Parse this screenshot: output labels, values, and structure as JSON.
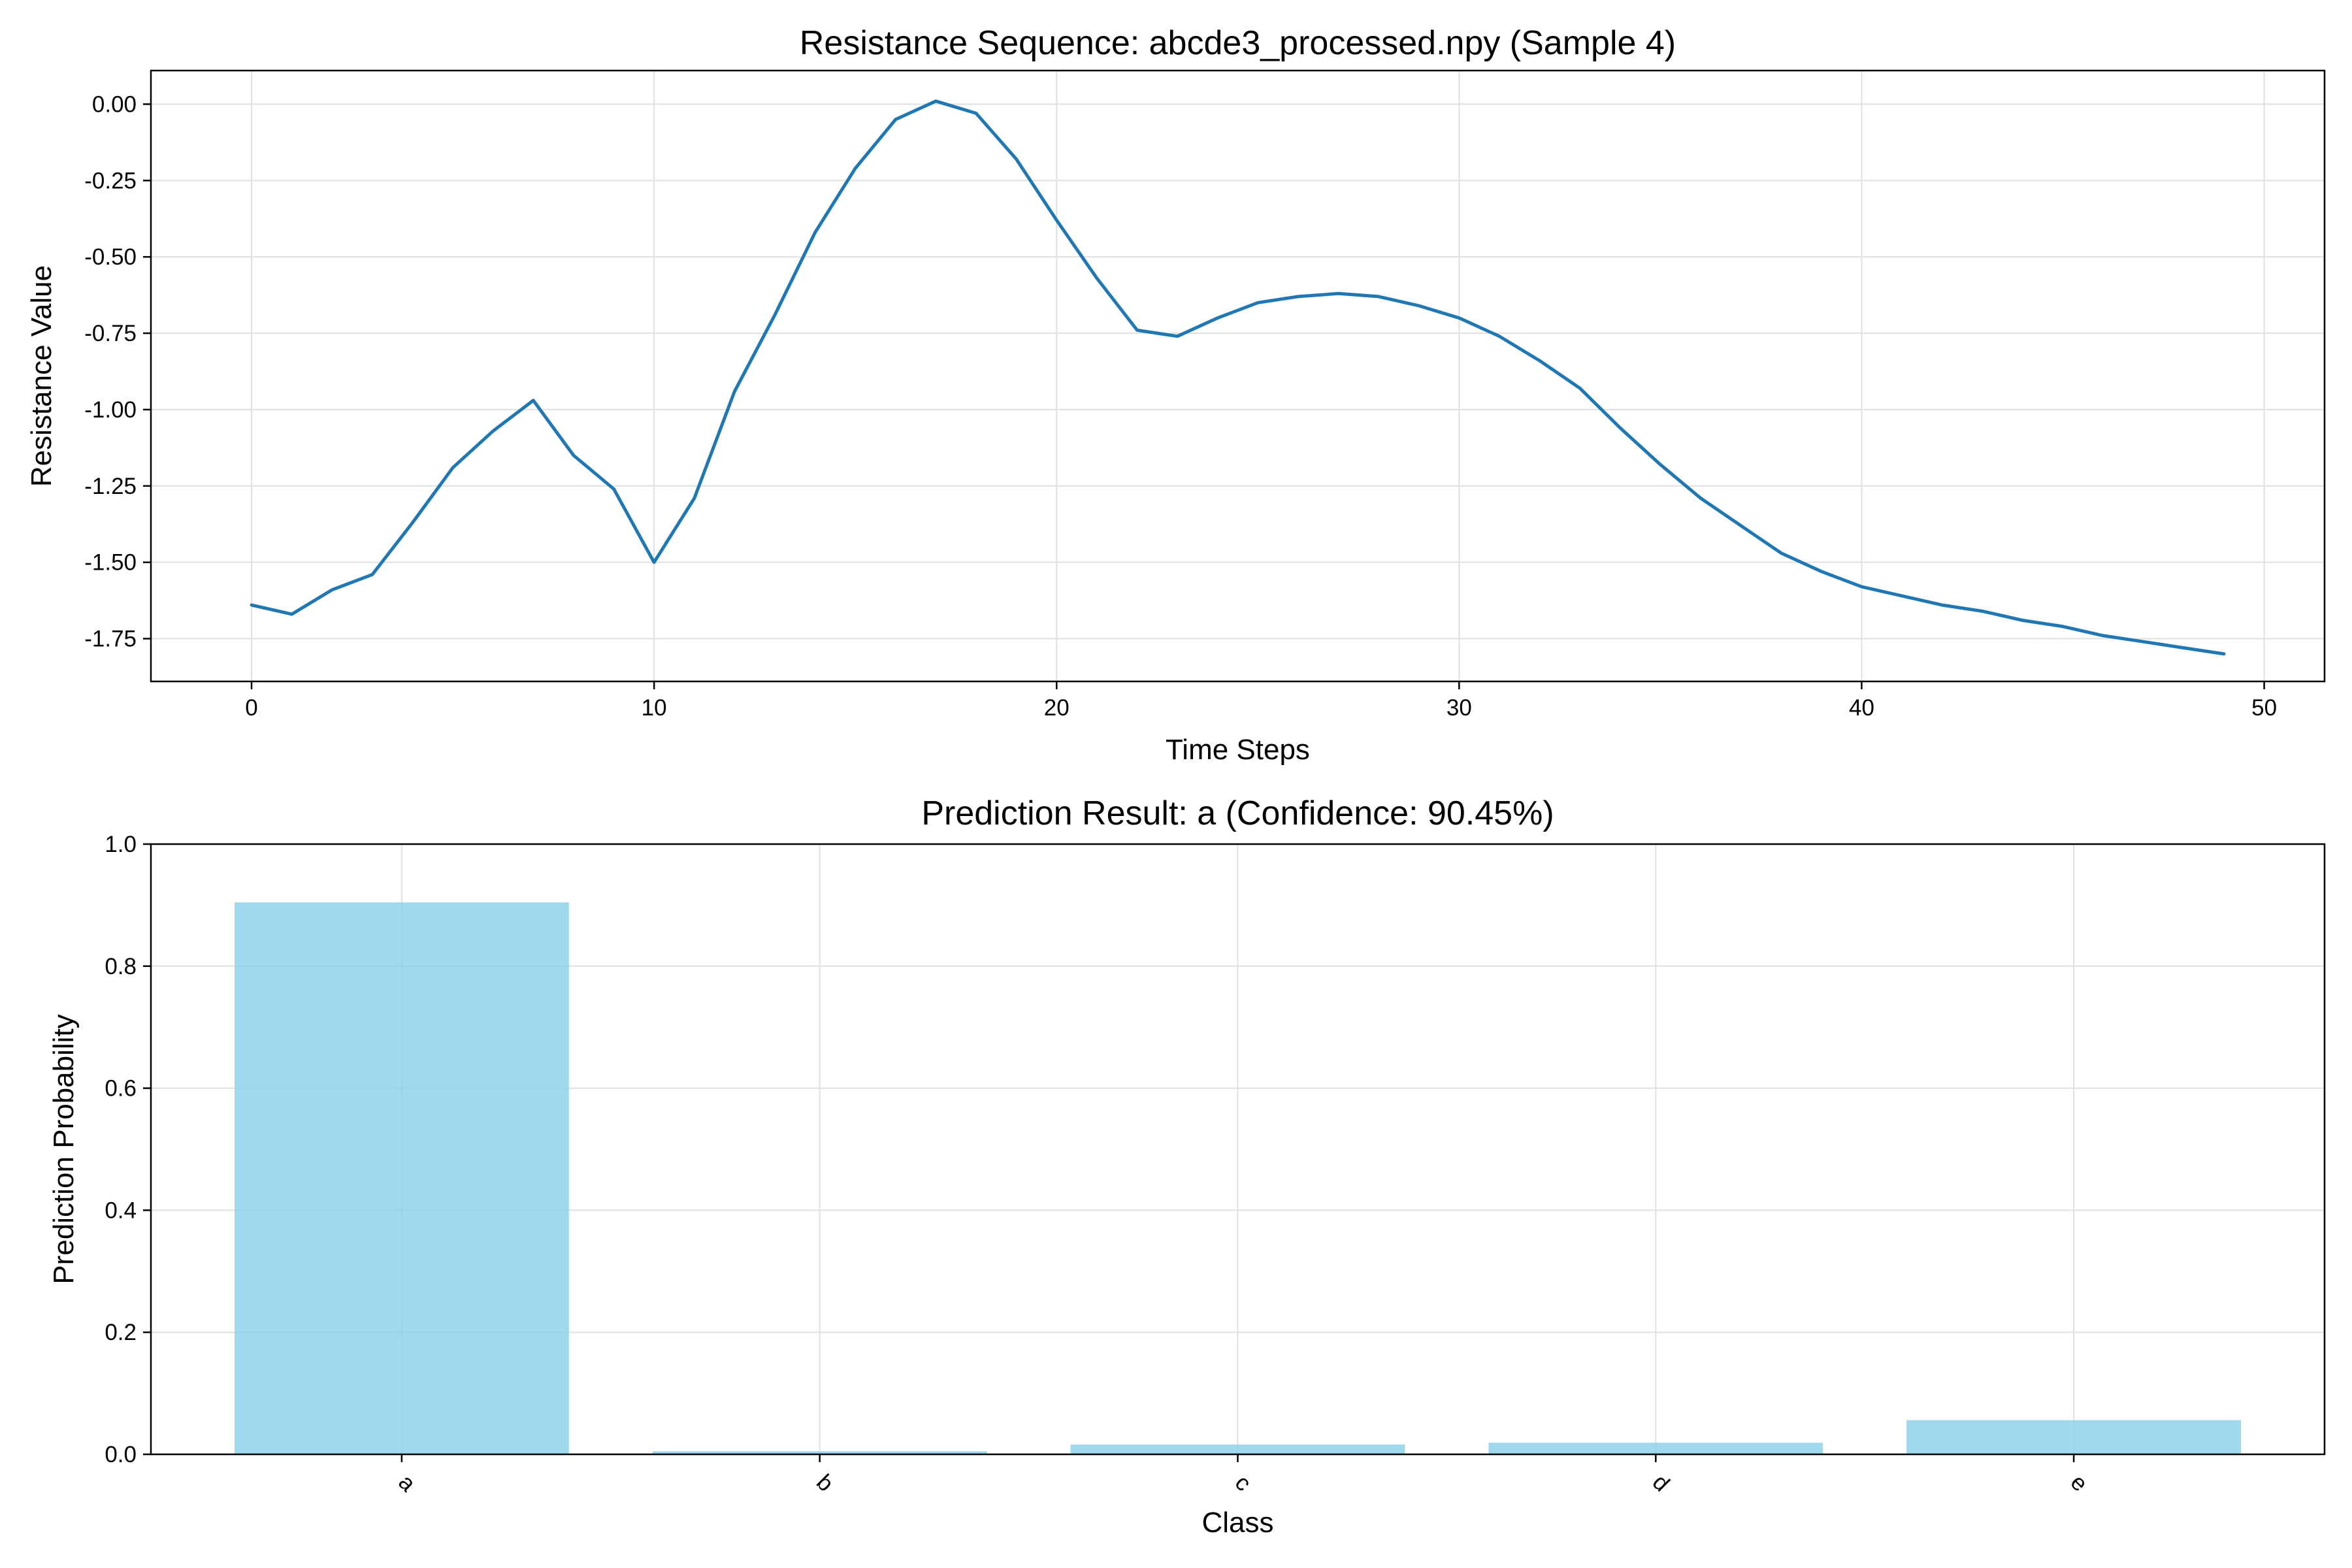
{
  "chart_data": [
    {
      "type": "line",
      "title": "Resistance Sequence: abcde3_processed.npy (Sample 4)",
      "xlabel": "Time Steps",
      "ylabel": "Resistance Value",
      "xlim": [
        -2.5,
        51.5
      ],
      "ylim": [
        -1.89,
        0.11
      ],
      "xticks": [
        0,
        10,
        20,
        30,
        40,
        50
      ],
      "xtick_labels": [
        "0",
        "10",
        "20",
        "30",
        "40",
        "50"
      ],
      "yticks": [
        0.0,
        -0.25,
        -0.5,
        -0.75,
        -1.0,
        -1.25,
        -1.5,
        -1.75
      ],
      "ytick_labels": [
        "0.00",
        "-0.25",
        "-0.50",
        "-0.75",
        "-1.00",
        "-1.25",
        "-1.50",
        "-1.75"
      ],
      "grid": true,
      "color": "#1f77b4",
      "x": [
        0,
        1,
        2,
        3,
        4,
        5,
        6,
        7,
        8,
        9,
        10,
        11,
        12,
        13,
        14,
        15,
        16,
        17,
        18,
        19,
        20,
        21,
        22,
        23,
        24,
        25,
        26,
        27,
        28,
        29,
        30,
        31,
        32,
        33,
        34,
        35,
        36,
        37,
        38,
        39,
        40,
        41,
        42,
        43,
        44,
        45,
        46,
        47,
        48,
        49
      ],
      "y": [
        -1.64,
        -1.67,
        -1.59,
        -1.54,
        -1.37,
        -1.19,
        -1.07,
        -0.97,
        -1.15,
        -1.26,
        -1.5,
        -1.29,
        -0.94,
        -0.69,
        -0.42,
        -0.21,
        -0.05,
        0.01,
        -0.03,
        -0.18,
        -0.38,
        -0.57,
        -0.74,
        -0.76,
        -0.7,
        -0.65,
        -0.63,
        -0.62,
        -0.63,
        -0.66,
        -0.7,
        -0.76,
        -0.84,
        -0.93,
        -1.06,
        -1.18,
        -1.29,
        -1.38,
        -1.47,
        -1.53,
        -1.58,
        -1.61,
        -1.64,
        -1.66,
        -1.69,
        -1.71,
        -1.74,
        -1.76,
        -1.78,
        -1.8
      ]
    },
    {
      "type": "bar",
      "title": "Prediction Result: a (Confidence: 90.45%)",
      "xlabel": "Class",
      "ylabel": "Prediction Probability",
      "categories": [
        "a",
        "b",
        "c",
        "d",
        "e"
      ],
      "values": [
        0.9045,
        0.005,
        0.016,
        0.019,
        0.056
      ],
      "ylim": [
        0,
        1.0
      ],
      "yticks": [
        0.0,
        0.2,
        0.4,
        0.6,
        0.8,
        1.0
      ],
      "ytick_labels": [
        "0.0",
        "0.2",
        "0.4",
        "0.6",
        "0.8",
        "1.0"
      ],
      "xtick_rotation": 45,
      "grid": true,
      "color": "#87ceeb"
    }
  ]
}
